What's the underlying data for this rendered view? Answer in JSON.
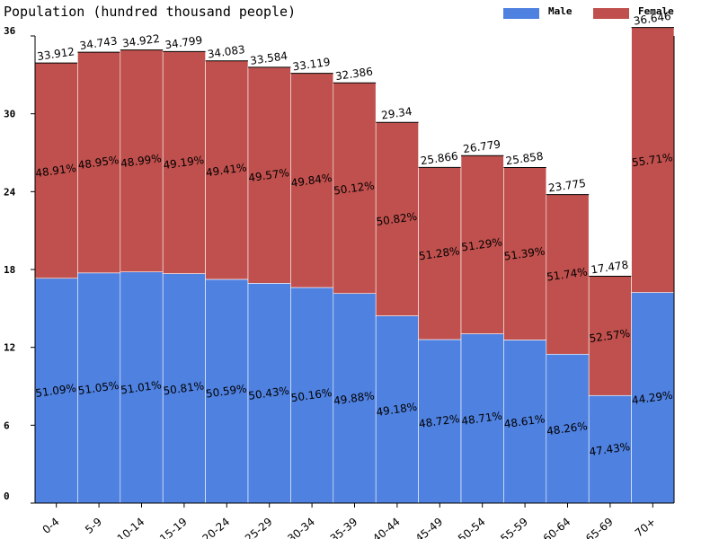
{
  "chart_data": {
    "type": "bar",
    "stacked": true,
    "title": "Population (hundred thousand people)",
    "categories": [
      "0-4",
      "5-9",
      "10-14",
      "15-19",
      "20-24",
      "25-29",
      "30-34",
      "35-39",
      "40-44",
      "45-49",
      "50-54",
      "55-59",
      "60-64",
      "65-69",
      "70+"
    ],
    "totals": [
      33.912,
      34.743,
      34.922,
      34.799,
      34.083,
      33.584,
      33.119,
      32.386,
      29.34,
      25.866,
      26.779,
      25.858,
      23.775,
      17.478,
      36.646
    ],
    "total_labels": [
      "33.912",
      "34.743",
      "34.922",
      "34.799",
      "34.083",
      "33.584",
      "33.119",
      "32.386",
      "29.34",
      "25.866",
      "26.779",
      "25.858",
      "23.775",
      "17.478",
      "36.646"
    ],
    "series": [
      {
        "name": "Male",
        "color": "#4f81e0",
        "percent": [
          51.09,
          51.05,
          51.01,
          50.81,
          50.59,
          50.43,
          50.16,
          49.88,
          49.18,
          48.72,
          48.71,
          48.61,
          48.26,
          47.43,
          44.29
        ],
        "labels": [
          "51.09%",
          "51.05%",
          "51.01%",
          "50.81%",
          "50.59%",
          "50.43%",
          "50.16%",
          "49.88%",
          "49.18%",
          "48.72%",
          "48.71%",
          "48.61%",
          "48.26%",
          "47.43%",
          "44.29%"
        ]
      },
      {
        "name": "Female",
        "color": "#c0504d",
        "percent": [
          48.91,
          48.95,
          48.99,
          49.19,
          49.41,
          49.57,
          49.84,
          50.12,
          50.82,
          51.28,
          51.29,
          51.39,
          51.74,
          52.57,
          55.71
        ],
        "labels": [
          "48.91%",
          "48.95%",
          "48.99%",
          "49.19%",
          "49.41%",
          "49.57%",
          "49.84%",
          "50.12%",
          "50.82%",
          "51.28%",
          "51.29%",
          "51.39%",
          "51.74%",
          "52.57%",
          "55.71%"
        ]
      }
    ],
    "ylim": [
      0,
      36
    ],
    "yticks": [
      0,
      6,
      12,
      18,
      24,
      30,
      36
    ],
    "ytick_labels": [
      "0",
      "6",
      "12",
      "18",
      "24",
      "30",
      "36"
    ],
    "legend_position": "top-right",
    "grid": false
  }
}
